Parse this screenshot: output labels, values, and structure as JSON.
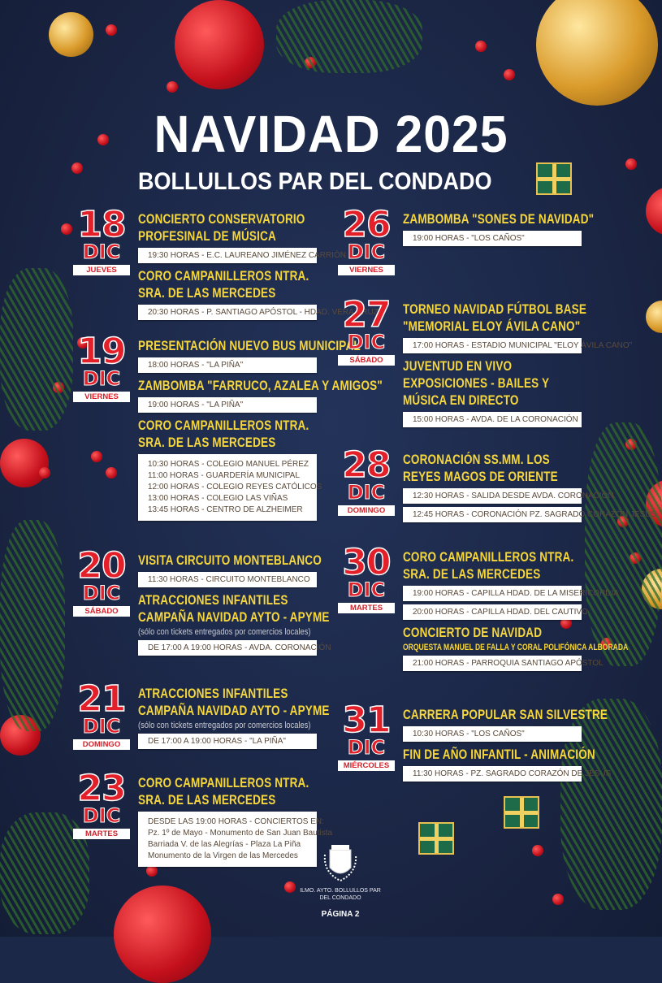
{
  "header": {
    "title": "NAVIDAD 2025",
    "subtitle": "BOLLULLOS PAR DEL CONDADO"
  },
  "colors": {
    "background": "#1c2847",
    "date": "#e3202a",
    "event_title": "#f5d63c",
    "slot_bg": "#ffffff"
  },
  "days": [
    {
      "num": "18",
      "month": "DIC",
      "weekday": "JUEVES",
      "events": [
        {
          "title": [
            "CONCIERTO CONSERVATORIO",
            "PROFESINAL DE MÚSICA"
          ],
          "slots": [
            [
              "19:30 HORAS - E.C. LAUREANO JIMÉNEZ CARRIÓN"
            ]
          ]
        },
        {
          "title": [
            "CORO CAMPANILLEROS NTRA.",
            "SRA. DE LAS MERCEDES"
          ],
          "slots": [
            [
              "20:30 HORAS - P. SANTIAGO APÓSTOL - HDAD. VERA CRUZ"
            ]
          ]
        }
      ]
    },
    {
      "num": "19",
      "month": "DIC",
      "weekday": "VIERNES",
      "events": [
        {
          "title": [
            "PRESENTACIÓN NUEVO BUS MUNICIPAL"
          ],
          "slots": [
            [
              "18:00 HORAS - \"LA PIÑA\""
            ]
          ]
        },
        {
          "title": [
            "ZAMBOMBA \"FARRUCO, AZALEA Y AMIGOS\""
          ],
          "slots": [
            [
              "19:00 HORAS - \"LA PIÑA\""
            ]
          ]
        },
        {
          "title": [
            "CORO CAMPANILLEROS NTRA.",
            "SRA. DE LAS MERCEDES"
          ],
          "slots": [
            [
              "10:30 HORAS - COLEGIO MANUEL PÉREZ",
              "11:00 HORAS - GUARDERÍA MUNICIPAL",
              "12:00 HORAS - COLEGIO REYES CATÓLICOS",
              "13:00 HORAS - COLEGIO LAS VIÑAS",
              "13:45 HORAS - CENTRO DE ALZHEIMER"
            ]
          ]
        }
      ]
    },
    {
      "num": "20",
      "month": "DIC",
      "weekday": "SÁBADO",
      "events": [
        {
          "title": [
            "VISITA CIRCUITO MONTEBLANCO"
          ],
          "slots": [
            [
              "11:30 HORAS - CIRCUITO MONTEBLANCO"
            ]
          ]
        },
        {
          "title": [
            "ATRACCIONES INFANTILES",
            "CAMPAÑA NAVIDAD AYTO - APYME"
          ],
          "note": "(sólo con tickets entregados por comercios locales)",
          "slots": [
            [
              "DE 17:00 A 19:00 HORAS - AVDA. CORONACIÓN"
            ]
          ]
        }
      ]
    },
    {
      "num": "21",
      "month": "DIC",
      "weekday": "DOMINGO",
      "events": [
        {
          "title": [
            "ATRACCIONES INFANTILES",
            "CAMPAÑA NAVIDAD AYTO - APYME"
          ],
          "note": "(sólo con tickets entregados por comercios locales)",
          "slots": [
            [
              "DE 17:00 A 19:00 HORAS - \"LA PIÑA\""
            ]
          ]
        }
      ]
    },
    {
      "num": "23",
      "month": "DIC",
      "weekday": "MARTES",
      "events": [
        {
          "title": [
            "CORO CAMPANILLEROS NTRA.",
            "SRA. DE LAS MERCEDES"
          ],
          "slots": [
            [
              "DESDE LAS 19:00 HORAS - CONCIERTOS EN:",
              "Pz. 1º de Mayo - Monumento de San Juan Bautista",
              "Barriada V. de las Alegrías - Plaza La Piña",
              "Monumento de la Virgen de las Mercedes"
            ]
          ]
        }
      ]
    },
    {
      "num": "26",
      "month": "DIC",
      "weekday": "VIERNES",
      "events": [
        {
          "title": [
            "ZAMBOMBA \"SONES DE NAVIDAD\""
          ],
          "slots": [
            [
              "19:00 HORAS - \"LOS CAÑOS\""
            ]
          ]
        }
      ]
    },
    {
      "num": "27",
      "month": "DIC",
      "weekday": "SÁBADO",
      "events": [
        {
          "title": [
            "TORNEO NAVIDAD FÚTBOL BASE",
            "\"MEMORIAL ELOY ÁVILA CANO\""
          ],
          "slots": [
            [
              "17:00 HORAS - ESTADIO MUNICIPAL \"ELOY ÁVILA CANO\""
            ]
          ]
        },
        {
          "title": [
            "JUVENTUD EN VIVO",
            "EXPOSICIONES - BAILES Y",
            "MÚSICA EN DIRECTO"
          ],
          "slots": [
            [
              "15:00 HORAS - AVDA. DE LA CORONACIÓN"
            ]
          ]
        }
      ]
    },
    {
      "num": "28",
      "month": "DIC",
      "weekday": "DOMINGO",
      "events": [
        {
          "title": [
            "CORONACIÓN SS.MM. LOS",
            "REYES MAGOS DE ORIENTE"
          ],
          "slots": [
            [
              "12:30 HORAS - SALIDA DESDE AVDA. CORONACIÓN"
            ],
            [
              "12:45 HORAS - CORONACIÓN PZ. SAGRADO CORAZÓN JESÚS"
            ]
          ]
        }
      ]
    },
    {
      "num": "30",
      "month": "DIC",
      "weekday": "MARTES",
      "events": [
        {
          "title": [
            "CORO CAMPANILLEROS NTRA.",
            "SRA. DE LAS MERCEDES"
          ],
          "slots": [
            [
              "19:00 HORAS - CAPILLA HDAD. DE LA MISERICORDIA"
            ],
            [
              "20:00 HORAS - CAPILLA HDAD. DEL CAUTIVO"
            ]
          ]
        },
        {
          "title": [
            "CONCIERTO DE NAVIDAD"
          ],
          "subtitle": "ORQUESTA MANUEL DE FALLA Y CORAL POLIFÓNICA ALBORADA",
          "slots": [
            [
              "21:00 HORAS - PARROQUIA SANTIAGO APÓSTOL"
            ]
          ]
        }
      ]
    },
    {
      "num": "31",
      "month": "DIC",
      "weekday": "MIÉRCOLES",
      "events": [
        {
          "title": [
            "CARRERA POPULAR SAN SILVESTRE"
          ],
          "slots": [
            [
              "10:30 HORAS - \"LOS CAÑOS\""
            ]
          ]
        },
        {
          "title": [
            "FIN DE AÑO INFANTIL - ANIMACIÓN"
          ],
          "slots": [
            [
              "11:30 HORAS - PZ. SAGRADO CORAZÓN DE JESÚS"
            ]
          ]
        }
      ]
    }
  ],
  "footer": {
    "logo_text": "ILMO. AYTO. BOLLULLOS PAR DEL CONDADO",
    "page": "PÁGINA 2"
  }
}
